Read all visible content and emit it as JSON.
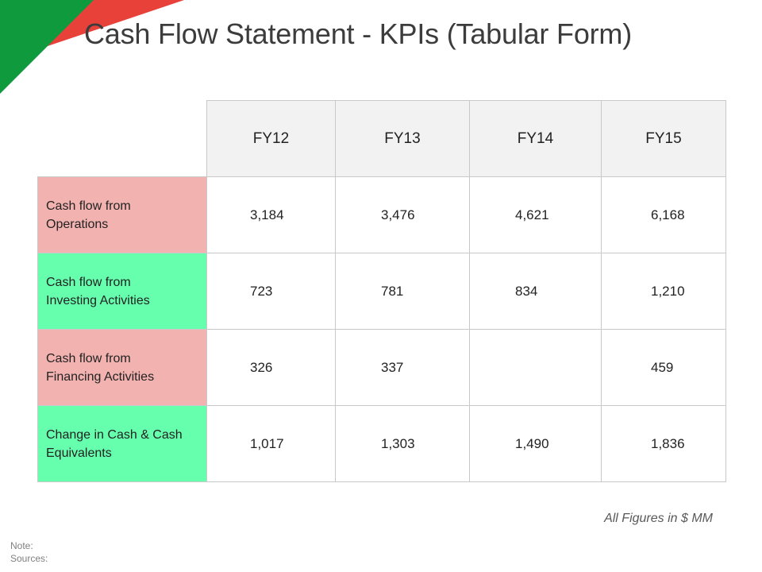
{
  "slide": {
    "title": "Cash Flow Statement - KPIs (Tabular Form)",
    "accent_colors": {
      "green": "#109a3e",
      "red": "#e8413a",
      "pink_row": "#f2b2b0",
      "mint_row": "#66ffad"
    }
  },
  "table": {
    "columns": [
      "FY12",
      "FY13",
      "FY14",
      "FY15"
    ],
    "rows": [
      {
        "label_line1": "Cash flow from",
        "label_line2": "Operations",
        "values": [
          "3,184",
          "3,476",
          "4,621",
          "6,168"
        ]
      },
      {
        "label_line1": "Cash flow from",
        "label_line2": "Investing Activities",
        "values": [
          "723",
          "781",
          "834",
          "1,210"
        ]
      },
      {
        "label_line1": "Cash flow from",
        "label_line2": "Financing Activities",
        "values": [
          "326",
          "337",
          "",
          "459"
        ]
      },
      {
        "label_line1": "Change in Cash & Cash",
        "label_line2": "Equivalents",
        "values": [
          "1,017",
          "1,303",
          "1,490",
          "1,836"
        ]
      }
    ]
  },
  "units_note": "All Figures in $ MM",
  "footnotes": {
    "note": "Note:",
    "sources": "Sources:"
  }
}
